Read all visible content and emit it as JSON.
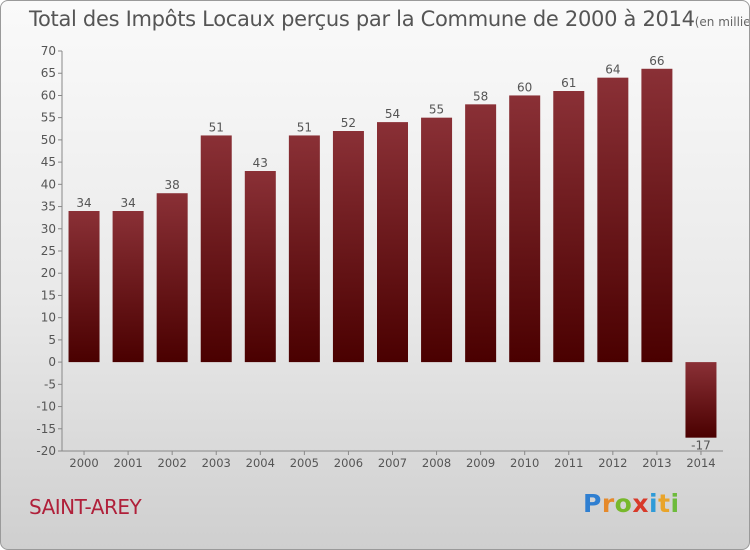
{
  "title": "Total des Impôts Locaux perçus par la Commune de 2000 à 2014",
  "unit_label": "(en milliers d'€)",
  "commune": "SAINT-AREY",
  "logo_text": "Proxiti",
  "colors": {
    "bar_top": "#8a3036",
    "bar_bottom": "#4a0000",
    "text": "#555555",
    "commune": "#b0203a"
  },
  "chart_data": {
    "type": "bar",
    "title": "Total des Impôts Locaux perçus par la Commune de 2000 à 2014",
    "xlabel": "",
    "ylabel": "(en milliers d'€)",
    "categories": [
      "2000",
      "2001",
      "2002",
      "2003",
      "2004",
      "2005",
      "2006",
      "2007",
      "2008",
      "2009",
      "2010",
      "2011",
      "2012",
      "2013",
      "2014"
    ],
    "values": [
      34,
      34,
      38,
      51,
      43,
      51,
      52,
      54,
      55,
      58,
      60,
      61,
      64,
      66,
      -17
    ],
    "ylim": [
      -20,
      70
    ],
    "yticks": [
      70,
      65,
      60,
      55,
      50,
      45,
      40,
      35,
      30,
      25,
      20,
      15,
      10,
      5,
      0,
      -5,
      -10,
      -15,
      -20
    ],
    "grid": false
  }
}
